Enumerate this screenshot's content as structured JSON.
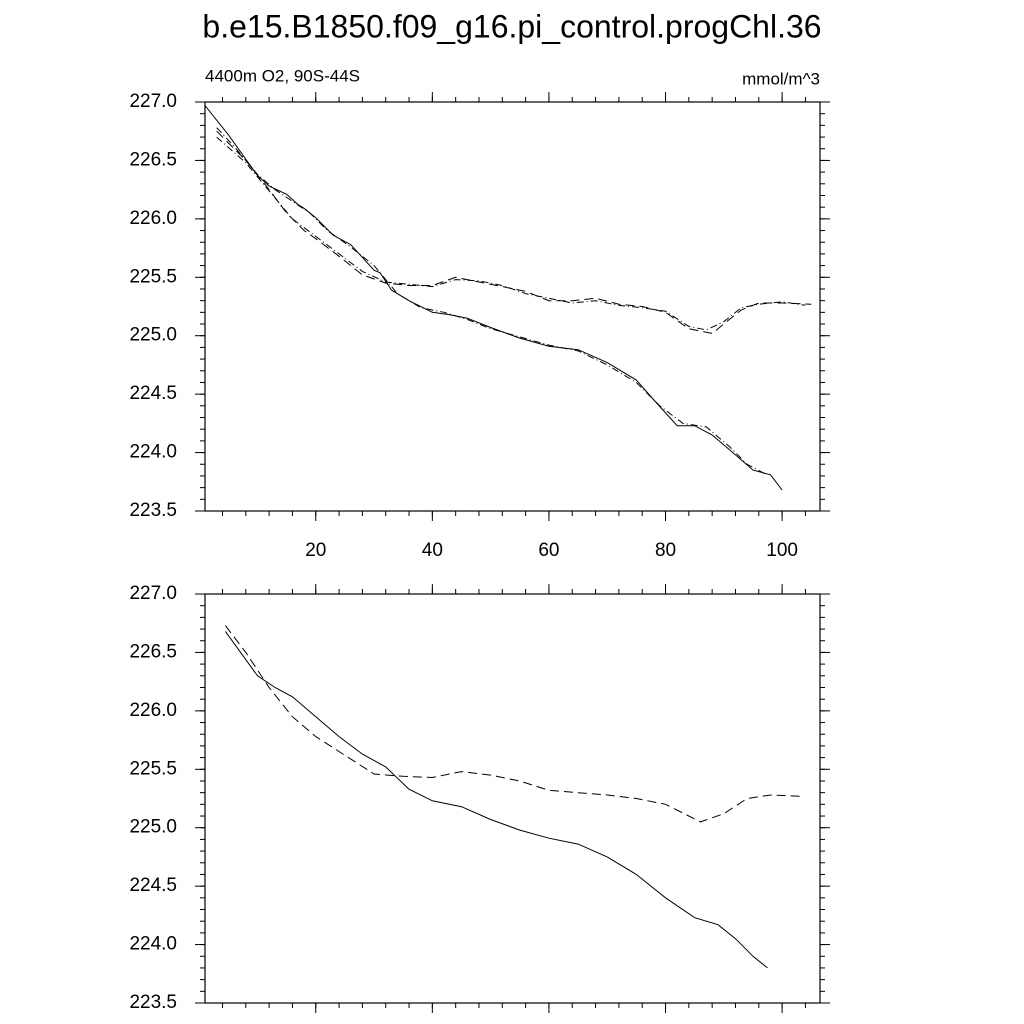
{
  "chart_data": [
    {
      "type": "line",
      "title": "b.e15.B1850.f09_g16.pi_control.progChl.36",
      "left_string": "4400m O2, 90S-44S",
      "right_string": "mmol/m^3",
      "xlim": [
        1,
        106.5
      ],
      "xticks": [
        20,
        40,
        60,
        80,
        100
      ],
      "xtick_labels": true,
      "ylim": [
        223.5,
        227.0
      ],
      "yticks": [
        {
          "value": 223.5,
          "label": "223.5"
        },
        {
          "value": 224.0,
          "label": "224.0"
        },
        {
          "value": 224.5,
          "label": "224.5"
        },
        {
          "value": 225.0,
          "label": "225.0"
        },
        {
          "value": 225.5,
          "label": "225.5"
        },
        {
          "value": 226.0,
          "label": "226.0"
        },
        {
          "value": 226.5,
          "label": "226.5"
        },
        {
          "value": 227.0,
          "label": "227.0"
        }
      ],
      "series": [
        {
          "color": "#000000",
          "dash": "solid",
          "x": [
            1,
            5,
            10,
            12,
            15,
            17,
            18,
            20,
            23,
            26,
            30,
            31,
            33,
            36,
            40,
            43,
            46,
            50,
            55,
            60,
            65,
            70,
            75,
            78,
            82,
            85,
            88,
            92,
            95,
            98,
            100
          ],
          "values": [
            226.97,
            226.72,
            226.37,
            226.28,
            226.21,
            226.12,
            226.09,
            226.01,
            225.86,
            225.78,
            225.56,
            225.54,
            225.39,
            225.3,
            225.2,
            225.18,
            225.15,
            225.07,
            224.98,
            224.91,
            224.88,
            224.77,
            224.62,
            224.45,
            224.23,
            224.23,
            224.15,
            223.98,
            223.85,
            223.81,
            223.68
          ]
        },
        {
          "color": "#000000",
          "dash": "dashdot",
          "x": [
            3,
            6,
            10,
            13,
            16,
            19,
            22,
            26,
            30,
            34,
            38,
            42,
            46,
            50,
            55,
            60,
            65,
            70,
            75,
            79,
            83,
            87,
            91,
            94,
            97
          ],
          "values": [
            226.78,
            226.62,
            226.38,
            226.25,
            226.15,
            226.05,
            225.9,
            225.76,
            225.6,
            225.36,
            225.24,
            225.2,
            225.14,
            225.06,
            224.99,
            224.92,
            224.87,
            224.75,
            224.6,
            224.4,
            224.25,
            224.22,
            224.05,
            223.9,
            223.82
          ]
        },
        {
          "color": "#000000",
          "dash": "dash",
          "x": [
            3,
            8,
            12,
            15,
            18,
            20,
            24,
            28,
            32,
            36,
            40,
            44,
            48,
            52,
            56,
            60,
            64,
            68,
            72,
            76,
            80,
            84,
            88,
            90,
            93,
            96,
            100,
            105
          ],
          "values": [
            226.75,
            226.5,
            226.25,
            226.05,
            225.9,
            225.83,
            225.68,
            225.52,
            225.45,
            225.43,
            225.43,
            225.5,
            225.46,
            225.42,
            225.38,
            225.3,
            225.3,
            225.32,
            225.27,
            225.25,
            225.2,
            225.06,
            225.02,
            225.1,
            225.22,
            225.28,
            225.28,
            225.27
          ]
        },
        {
          "color": "#000000",
          "dash": "dashdot",
          "x": [
            3,
            8,
            12,
            16,
            20,
            24,
            28,
            32,
            36,
            40,
            44,
            48,
            52,
            56,
            60,
            64,
            68,
            72,
            76,
            80,
            84,
            87,
            90,
            93,
            96,
            100,
            104
          ],
          "values": [
            226.7,
            226.48,
            226.24,
            226.0,
            225.85,
            225.7,
            225.55,
            225.46,
            225.44,
            225.42,
            225.48,
            225.47,
            225.43,
            225.36,
            225.32,
            225.28,
            225.3,
            225.26,
            225.24,
            225.21,
            225.08,
            225.05,
            225.12,
            225.24,
            225.27,
            225.29,
            225.26
          ]
        }
      ]
    },
    {
      "type": "line",
      "xlim": [
        1,
        106.5
      ],
      "xticks": [
        20,
        40,
        60,
        80,
        100
      ],
      "xtick_labels": false,
      "ylim": [
        223.5,
        227.0
      ],
      "yticks": [
        {
          "value": 223.5,
          "label": "223.5"
        },
        {
          "value": 224.0,
          "label": "224.0"
        },
        {
          "value": 224.5,
          "label": "224.5"
        },
        {
          "value": 225.0,
          "label": "225.0"
        },
        {
          "value": 225.5,
          "label": "225.5"
        },
        {
          "value": 226.0,
          "label": "226.0"
        },
        {
          "value": 226.5,
          "label": "226.5"
        },
        {
          "value": 227.0,
          "label": "227.0"
        }
      ],
      "series": [
        {
          "color": "#000000",
          "dash": "solid",
          "x": [
            4.5,
            10,
            13,
            16,
            20,
            24,
            28,
            32,
            36,
            40,
            45,
            50,
            55,
            60,
            65,
            70,
            75,
            80,
            85,
            89,
            92,
            95,
            97.5
          ],
          "values": [
            226.68,
            226.3,
            226.2,
            226.12,
            225.95,
            225.78,
            225.63,
            225.52,
            225.33,
            225.23,
            225.18,
            225.07,
            224.98,
            224.91,
            224.86,
            224.75,
            224.6,
            224.4,
            224.23,
            224.17,
            224.05,
            223.9,
            223.8
          ]
        },
        {
          "color": "#000000",
          "dash": "dash",
          "x": [
            4.5,
            8,
            12,
            16,
            20,
            25,
            30,
            35,
            40,
            45,
            50,
            55,
            60,
            65,
            70,
            75,
            80,
            86,
            90,
            94,
            98,
            103
          ],
          "values": [
            226.73,
            226.5,
            226.2,
            225.95,
            225.78,
            225.62,
            225.46,
            225.44,
            225.43,
            225.48,
            225.45,
            225.4,
            225.32,
            225.3,
            225.28,
            225.25,
            225.2,
            225.05,
            225.12,
            225.25,
            225.28,
            225.27
          ]
        }
      ]
    }
  ]
}
